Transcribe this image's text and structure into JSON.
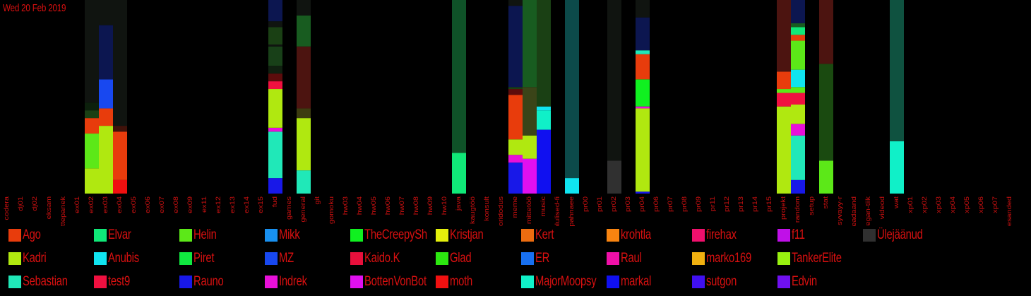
{
  "date_label": "Wed 20 Feb 2019",
  "chart_data": {
    "type": "bar",
    "stacked": true,
    "title": "",
    "xlabel": "",
    "ylabel": "",
    "ylim": [
      0,
      100
    ],
    "background": "#000000",
    "label_color": "#c81010",
    "categories": [
      "codera",
      "dj01",
      "dj02",
      "eksam",
      "ettepanek",
      "ex01",
      "ex02",
      "ex03",
      "ex04",
      "ex05",
      "ex06",
      "ex07",
      "ex08",
      "ex09",
      "ex11",
      "ex12",
      "ex13",
      "ex14",
      "ex15",
      "fud",
      "games",
      "general",
      "git",
      "gomoku",
      "hw03",
      "hw04",
      "hw05",
      "hw06",
      "hw07",
      "hw08",
      "hw09",
      "hw10",
      "java",
      "kaugtöö",
      "konsult",
      "koridodus",
      "meme",
      "mittetöö",
      "music",
      "olulised-fi",
      "pahnaee",
      "pr00",
      "pr01",
      "pr02",
      "pr03",
      "pr04",
      "pr06",
      "pr07",
      "pr08",
      "pr09",
      "pr11",
      "pr12",
      "pr13",
      "pr14",
      "pr15",
      "projekt",
      "random",
      "setup",
      "stat",
      "syvayy-r",
      "teadaand",
      "vegan-tiik",
      "videod",
      "wat",
      "xp01",
      "xp02",
      "xp03",
      "xp04",
      "xp05",
      "xp06",
      "xp07",
      "ülesanded"
    ],
    "series": [
      {
        "name": "Ago",
        "color": "#e83c0c"
      },
      {
        "name": "Elvar",
        "color": "#10e878"
      },
      {
        "name": "Helin",
        "color": "#5ce818"
      },
      {
        "name": "Mikk",
        "color": "#1890f0"
      },
      {
        "name": "TheCreepySh",
        "color": "#10f020"
      },
      {
        "name": "Kristjan",
        "color": "#e4f00c"
      },
      {
        "name": "Kert",
        "color": "#ec6c10"
      },
      {
        "name": "krohtla",
        "color": "#f88410"
      },
      {
        "name": "firehax",
        "color": "#f0106c"
      },
      {
        "name": "f11",
        "color": "#c010e8"
      },
      {
        "name": "Ülejäänud",
        "color": "#303030"
      },
      {
        "name": "Kadri",
        "color": "#b0e810"
      },
      {
        "name": "Anubis",
        "color": "#10e4f0"
      },
      {
        "name": "Piret",
        "color": "#10e840"
      },
      {
        "name": "MZ",
        "color": "#1848f0"
      },
      {
        "name": "Kaido.K",
        "color": "#e8103c"
      },
      {
        "name": "Glad",
        "color": "#2ce810"
      },
      {
        "name": "ER",
        "color": "#1870f0"
      },
      {
        "name": "Raul",
        "color": "#f010a8"
      },
      {
        "name": "marko169",
        "color": "#f0b010"
      },
      {
        "name": "TankerElite",
        "color": "#98f010"
      },
      {
        "name": "Sebastian",
        "color": "#20e8b8"
      },
      {
        "name": "test9",
        "color": "#f01040"
      },
      {
        "name": "Rauno",
        "color": "#1818e8"
      },
      {
        "name": "Indrek",
        "color": "#e810d8"
      },
      {
        "name": "BottenVonBot",
        "color": "#e010f0"
      },
      {
        "name": "moth",
        "color": "#f01010"
      },
      {
        "name": "MajorMoopsy",
        "color": "#10f0c8"
      },
      {
        "name": "markal",
        "color": "#1010f0"
      },
      {
        "name": "sutgon",
        "color": "#4010f0"
      },
      {
        "name": "Edvin",
        "color": "#7010f0"
      }
    ],
    "bars": [
      {
        "category": "ex02",
        "segments": [
          {
            "series": "Kadri",
            "value": 13
          },
          {
            "series": "Helin",
            "value": 18
          },
          {
            "series": "Ago",
            "value": 8
          },
          {
            "series": null,
            "color": "#1a4014",
            "value": 4
          },
          {
            "series": null,
            "color": "#0c200c",
            "value": 4
          },
          {
            "series": null,
            "color": "#101410",
            "value": 53
          }
        ]
      },
      {
        "category": "ex03",
        "segments": [
          {
            "series": "Kadri",
            "value": 35
          },
          {
            "series": "Ago",
            "value": 9
          },
          {
            "series": "MZ",
            "value": 15
          },
          {
            "series": null,
            "color": "#0c1650",
            "value": 28
          },
          {
            "series": null,
            "color": "#101410",
            "value": 13
          }
        ]
      },
      {
        "category": "ex04",
        "segments": [
          {
            "series": "moth",
            "value": 7
          },
          {
            "series": "Ago",
            "value": 25
          },
          {
            "series": null,
            "color": "#40120a",
            "value": 3
          },
          {
            "series": null,
            "color": "#101410",
            "value": 65
          }
        ]
      },
      {
        "category": "fud",
        "segments": [
          {
            "series": "Rauno",
            "value": 8
          },
          {
            "series": "Sebastian",
            "value": 24
          },
          {
            "series": "Indrek",
            "value": 2
          },
          {
            "series": "Kadri",
            "value": 20
          },
          {
            "series": "test9",
            "value": 4
          },
          {
            "series": null,
            "color": "#5c0c0c",
            "value": 4
          },
          {
            "series": null,
            "color": "#102010",
            "value": 4
          },
          {
            "series": null,
            "color": "#184018",
            "value": 10
          },
          {
            "series": null,
            "color": "#101410",
            "value": 1
          },
          {
            "series": null,
            "color": "#1a4014",
            "value": 9
          },
          {
            "series": null,
            "color": "#101410",
            "value": 3
          },
          {
            "series": null,
            "color": "#0c1650",
            "value": 12
          }
        ]
      },
      {
        "category": "general",
        "segments": [
          {
            "series": "Sebastian",
            "value": 12
          },
          {
            "series": "Kadri",
            "value": 27
          },
          {
            "series": null,
            "color": "#3c3c10",
            "value": 5
          },
          {
            "series": null,
            "color": "#4c1410",
            "value": 32
          },
          {
            "series": null,
            "color": "#185c20",
            "value": 16
          },
          {
            "series": null,
            "color": "#101410",
            "value": 8
          }
        ]
      },
      {
        "category": "java",
        "segments": [
          {
            "series": "Elvar",
            "value": 21
          },
          {
            "series": null,
            "color": "#0f5228",
            "value": 79
          }
        ]
      },
      {
        "category": "meme",
        "segments": [
          {
            "series": "Rauno",
            "value": 16
          },
          {
            "series": "Indrek",
            "value": 4
          },
          {
            "series": "Kadri",
            "value": 8
          },
          {
            "series": "Ago",
            "value": 23
          },
          {
            "series": null,
            "color": "#5c0c0c",
            "value": 3
          },
          {
            "series": null,
            "color": "#1a4014",
            "value": 1
          },
          {
            "series": null,
            "color": "#0c1650",
            "value": 42
          },
          {
            "series": null,
            "color": "#101410",
            "value": 3
          }
        ]
      },
      {
        "category": "mittetöö",
        "segments": [
          {
            "series": "BottenVonBot",
            "value": 18
          },
          {
            "series": "Kadri",
            "value": 12
          },
          {
            "series": null,
            "color": "#3a4418",
            "value": 25
          },
          {
            "series": null,
            "color": "#185c20",
            "value": 45
          }
        ]
      },
      {
        "category": "music",
        "segments": [
          {
            "series": "markal",
            "value": 33
          },
          {
            "series": "MajorMoopsy",
            "value": 10
          },
          {
            "series": "Anubis",
            "value": 2
          },
          {
            "series": null,
            "color": "#1a4014",
            "value": 55
          }
        ]
      },
      {
        "category": "pahnaee",
        "segments": [
          {
            "series": "Anubis",
            "value": 8
          },
          {
            "series": null,
            "color": "#0c4a4a",
            "value": 92
          }
        ]
      },
      {
        "category": "pr02",
        "segments": [
          {
            "series": "Ülejäänud",
            "value": 17
          },
          {
            "series": null,
            "color": "#101410",
            "value": 83
          }
        ]
      },
      {
        "category": "pr04",
        "segments": [
          {
            "series": "Rauno",
            "value": 1
          },
          {
            "series": "Kadri",
            "value": 43
          },
          {
            "series": "Indrek",
            "value": 1
          },
          {
            "series": "TheCreepySh",
            "value": 14
          },
          {
            "series": "Ago",
            "value": 13
          },
          {
            "series": "Sebastian",
            "value": 2
          },
          {
            "series": null,
            "color": "#0c1650",
            "value": 17
          },
          {
            "series": null,
            "color": "#101410",
            "value": 9
          }
        ]
      },
      {
        "category": "projekt",
        "segments": [
          {
            "series": "Kadri",
            "value": 45
          },
          {
            "series": "test9",
            "value": 7
          },
          {
            "series": "Helin",
            "value": 2
          },
          {
            "series": "Ago",
            "value": 9
          },
          {
            "series": null,
            "color": "#4c1410",
            "value": 37
          }
        ]
      },
      {
        "category": "random",
        "segments": [
          {
            "series": "Rauno",
            "value": 7
          },
          {
            "series": "Sebastian",
            "value": 23
          },
          {
            "series": "Indrek",
            "value": 6
          },
          {
            "series": "Kadri",
            "value": 10
          },
          {
            "series": "test9",
            "value": 6
          },
          {
            "series": "Helin",
            "value": 3
          },
          {
            "series": "Anubis",
            "value": 9
          },
          {
            "series": "Helin",
            "value": 15
          },
          {
            "series": "Ago",
            "value": 3
          },
          {
            "series": "Elvar",
            "value": 4
          },
          {
            "series": null,
            "color": "#185c20",
            "value": 2
          },
          {
            "series": null,
            "color": "#0c1650",
            "value": 12
          }
        ]
      },
      {
        "category": "stat",
        "segments": [
          {
            "series": "Helin",
            "value": 17
          },
          {
            "series": null,
            "color": "#1a4a10",
            "value": 50
          },
          {
            "series": null,
            "color": "#4c1410",
            "value": 33
          }
        ]
      },
      {
        "category": "wat",
        "segments": [
          {
            "series": "MajorMoopsy",
            "value": 27
          },
          {
            "series": null,
            "color": "#0f5240",
            "value": 73
          }
        ]
      }
    ]
  },
  "legend": [
    [
      "Ago",
      "Elvar",
      "Helin",
      "Mikk",
      "TheCreepySh",
      "Kristjan",
      "Kert",
      "krohtla",
      "firehax",
      "f11",
      "Ülejäänud"
    ],
    [
      "Kadri",
      "Anubis",
      "Piret",
      "MZ",
      "Kaido.K",
      "Glad",
      "ER",
      "Raul",
      "marko169",
      "TankerElite"
    ],
    [
      "Sebastian",
      "test9",
      "Rauno",
      "Indrek",
      "BottenVonBot",
      "moth",
      "MajorMoopsy",
      "markal",
      "sutgon",
      "Edvin"
    ]
  ]
}
